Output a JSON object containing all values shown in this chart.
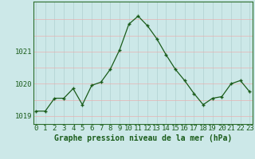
{
  "x": [
    0,
    1,
    2,
    3,
    4,
    5,
    6,
    7,
    8,
    9,
    10,
    11,
    12,
    13,
    14,
    15,
    16,
    17,
    18,
    19,
    20,
    21,
    22,
    23
  ],
  "y": [
    1019.15,
    1019.15,
    1019.55,
    1019.55,
    1019.85,
    1019.35,
    1019.95,
    1020.05,
    1020.45,
    1021.05,
    1021.85,
    1022.1,
    1021.8,
    1021.4,
    1020.9,
    1020.45,
    1020.1,
    1019.7,
    1019.35,
    1019.55,
    1019.6,
    1020.0,
    1020.1,
    1019.75
  ],
  "bg_color": "#cce8e8",
  "line_color": "#1a5c1a",
  "marker_color": "#1a5c1a",
  "grid_color_v": "#b0d0d0",
  "grid_color_h": "#e8b0b0",
  "title": "Graphe pression niveau de la mer (hPa)",
  "ylabel_ticks": [
    1019,
    1020,
    1021
  ],
  "xlim": [
    -0.3,
    23.3
  ],
  "ylim": [
    1018.75,
    1022.55
  ],
  "tick_fontsize": 6.5,
  "title_fontsize": 7.0
}
